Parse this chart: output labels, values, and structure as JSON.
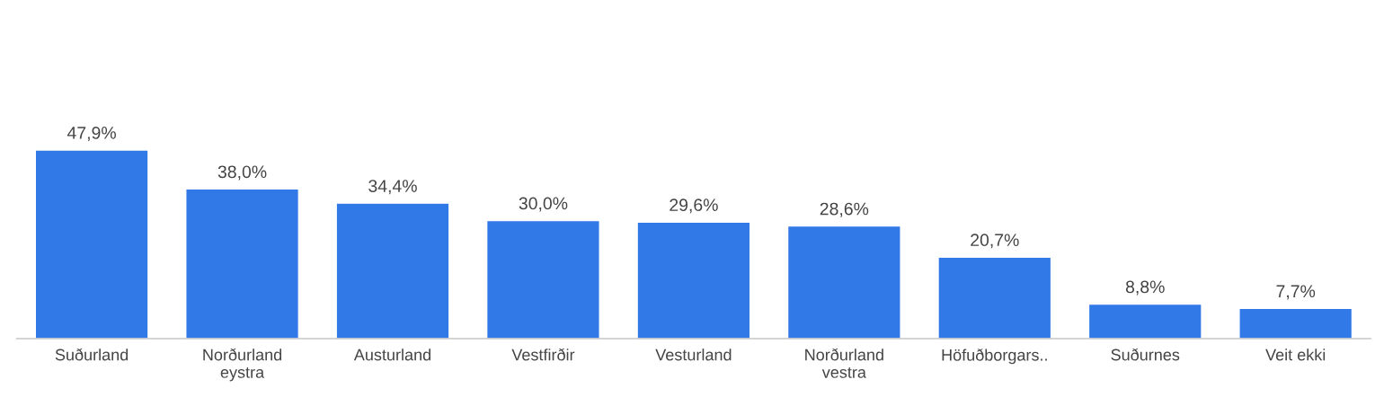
{
  "chart_data": {
    "type": "bar",
    "categories": [
      "Suðurland",
      "Norðurland eystra",
      "Austurland",
      "Vestfirðir",
      "Vesturland",
      "Norðurland vestra",
      "Höfuðborgars..",
      "Suðurnes",
      "Veit ekki"
    ],
    "values": [
      47.9,
      38.0,
      34.4,
      30.0,
      29.6,
      28.6,
      20.7,
      8.8,
      7.7
    ],
    "value_labels": [
      "47,9%",
      "38,0%",
      "34,4%",
      "30,0%",
      "29,6%",
      "28,6%",
      "20,7%",
      "8,8%",
      "7,7%"
    ],
    "color": "#3279e8",
    "grid": false,
    "legend": false
  }
}
